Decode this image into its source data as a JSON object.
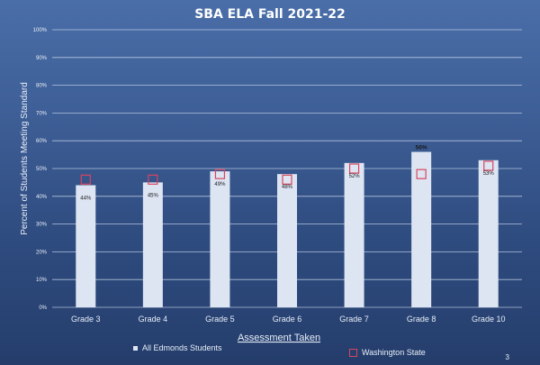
{
  "chart_data": {
    "type": "bar",
    "title": "SBA ELA Fall 2021-22",
    "xlabel": "Assessment Taken",
    "ylabel": "Percent of Students Meeting Standard",
    "ylim": [
      0,
      100
    ],
    "yticks": [
      "0%",
      "10%",
      "20%",
      "30%",
      "40%",
      "50%",
      "60%",
      "70%",
      "80%",
      "90%",
      "100%"
    ],
    "categories": [
      "Grade 3",
      "Grade 4",
      "Grade 5",
      "Grade 6",
      "Grade 7",
      "Grade 8",
      "Grade 10"
    ],
    "series": [
      {
        "name": "All Edmonds Students",
        "type": "bar",
        "values": [
          44,
          45,
          49,
          48,
          52,
          56,
          53
        ],
        "labels": [
          "44%",
          "45%",
          "49%",
          "48%",
          "52%",
          "56%",
          "53%"
        ],
        "color": "#dde5f3"
      },
      {
        "name": "Washington State",
        "type": "marker",
        "values": [
          46,
          46,
          48,
          46,
          50,
          48,
          51
        ],
        "color": "#d9455e"
      }
    ],
    "grid": true,
    "legend_position": "bottom"
  },
  "page_number": "3",
  "colors": {
    "gridline": "#c9d6ec",
    "axis_text": "#e8eef8",
    "label_bold": "#1a1a1a"
  }
}
